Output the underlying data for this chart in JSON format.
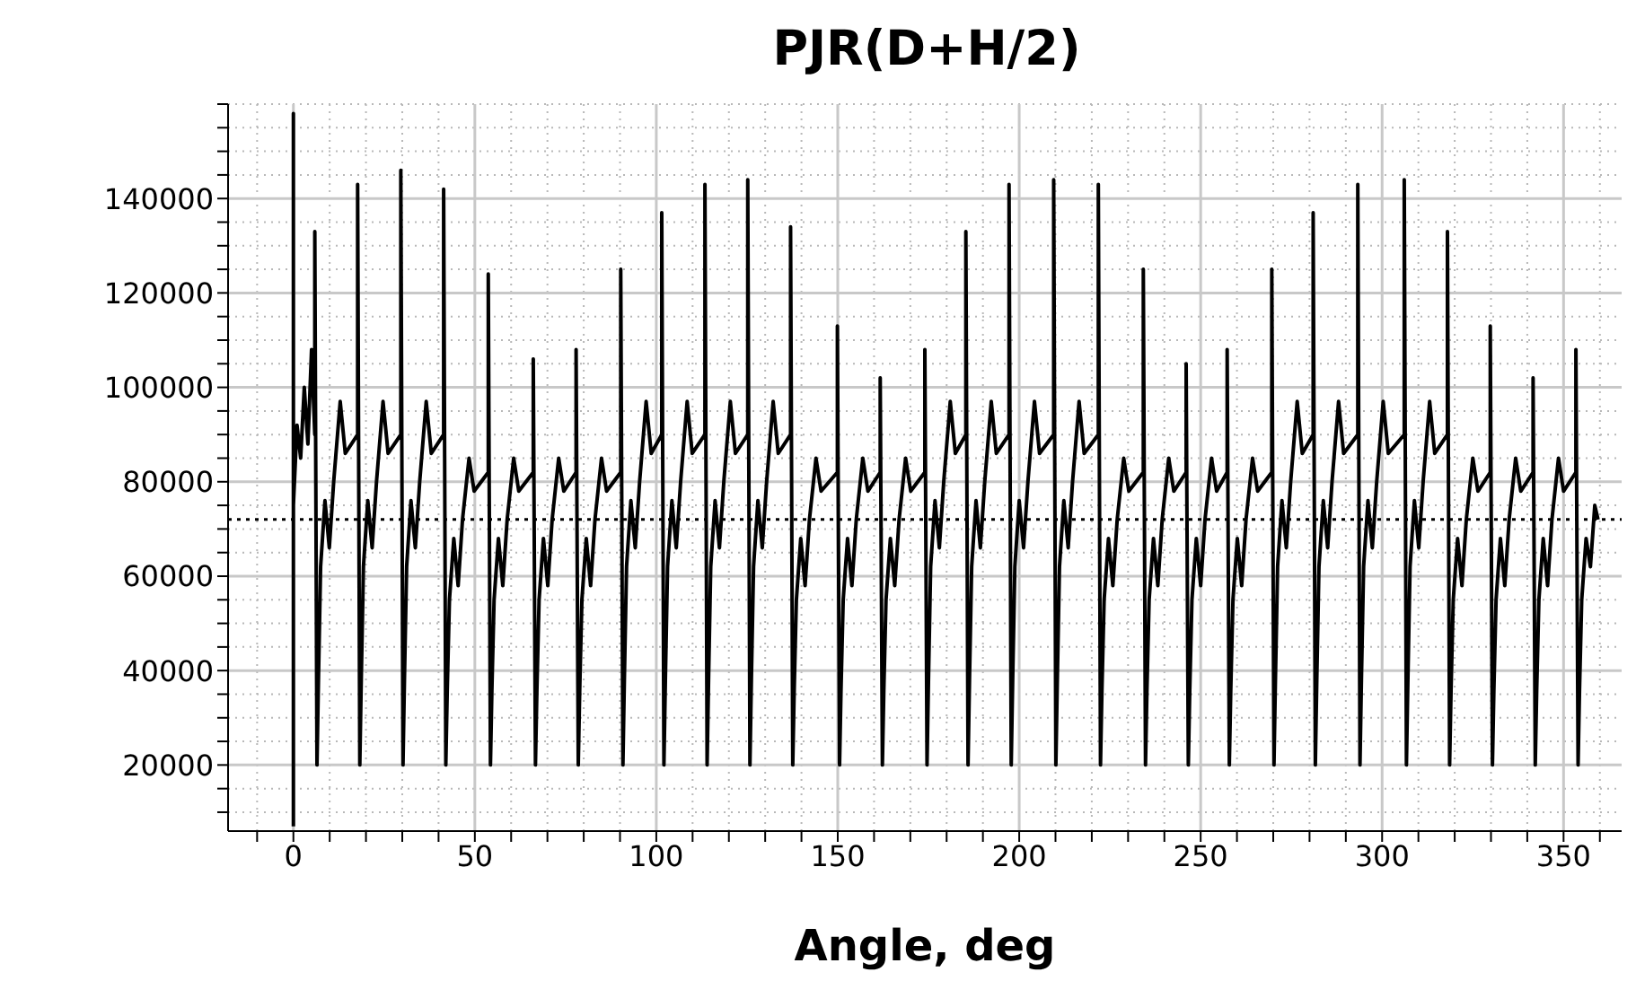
{
  "chart_data": {
    "type": "line",
    "title": "PJR(D+H/2)",
    "xlabel": "Angle, deg",
    "xlim": [
      -18,
      366
    ],
    "xticks": [
      {
        "value": -10,
        "label": null
      },
      0,
      {
        "value": 10,
        "label": null
      },
      {
        "value": 20,
        "label": null
      },
      {
        "value": 30,
        "label": null
      },
      {
        "value": 40,
        "label": null
      },
      50,
      {
        "value": 60,
        "label": null
      },
      {
        "value": 70,
        "label": null
      },
      {
        "value": 80,
        "label": null
      },
      {
        "value": 90,
        "label": null
      },
      100,
      {
        "value": 110,
        "label": null
      },
      {
        "value": 120,
        "label": null
      },
      {
        "value": 130,
        "label": null
      },
      {
        "value": 140,
        "label": null
      },
      150,
      {
        "value": 160,
        "label": null
      },
      {
        "value": 170,
        "label": null
      },
      {
        "value": 180,
        "label": null
      },
      {
        "value": 190,
        "label": null
      },
      200,
      {
        "value": 210,
        "label": null
      },
      {
        "value": 220,
        "label": null
      },
      {
        "value": 230,
        "label": null
      },
      {
        "value": 240,
        "label": null
      },
      250,
      {
        "value": 260,
        "label": null
      },
      {
        "value": 270,
        "label": null
      },
      {
        "value": 280,
        "label": null
      },
      {
        "value": 290,
        "label": null
      },
      300,
      {
        "value": 310,
        "label": null
      },
      {
        "value": 320,
        "label": null
      },
      {
        "value": 330,
        "label": null
      },
      {
        "value": 340,
        "label": null
      },
      350,
      {
        "value": 360,
        "label": null
      }
    ],
    "ylim": [
      6000,
      160000
    ],
    "yticks": [
      {
        "value": 10000,
        "label": null
      },
      {
        "value": 15000,
        "label": null
      },
      20000,
      {
        "value": 25000,
        "label": null
      },
      {
        "value": 30000,
        "label": null
      },
      {
        "value": 35000,
        "label": null
      },
      40000,
      {
        "value": 45000,
        "label": null
      },
      {
        "value": 50000,
        "label": null
      },
      {
        "value": 55000,
        "label": null
      },
      60000,
      {
        "value": 65000,
        "label": null
      },
      {
        "value": 70000,
        "label": null
      },
      {
        "value": 75000,
        "label": null
      },
      80000,
      {
        "value": 85000,
        "label": null
      },
      {
        "value": 90000,
        "label": null
      },
      {
        "value": 95000,
        "label": null
      },
      100000,
      {
        "value": 105000,
        "label": null
      },
      {
        "value": 110000,
        "label": null
      },
      {
        "value": 115000,
        "label": null
      },
      120000,
      {
        "value": 125000,
        "label": null
      },
      {
        "value": 130000,
        "label": null
      },
      {
        "value": 135000,
        "label": null
      },
      140000,
      {
        "value": 145000,
        "label": null
      },
      {
        "value": 150000,
        "label": null
      },
      {
        "value": 155000,
        "label": null
      },
      {
        "value": 160000,
        "label": null
      }
    ],
    "grid": true,
    "ref_lines": [
      {
        "axis": "y",
        "value": 72000,
        "color": "#000000",
        "line_style": "dotted"
      }
    ],
    "series": [
      {
        "color": "#000000",
        "x": [
          0,
          0,
          0,
          1,
          2,
          3,
          4,
          5,
          5.9,
          5.9,
          6.5,
          6.9,
          7.5,
          8.7,
          9.9,
          11.1,
          12.9,
          14.3,
          17.7,
          17.7,
          18.3,
          18.7,
          19.3,
          20.5,
          21.7,
          22.9,
          24.7,
          26.1,
          29.6,
          29.6,
          30.2,
          30.6,
          31.2,
          32.4,
          33.6,
          34.8,
          36.6,
          38,
          41.4,
          41.4,
          42,
          42.4,
          43,
          44.2,
          45.4,
          46.6,
          48.4,
          49.8,
          53.7,
          53.7,
          54.3,
          54.7,
          55.3,
          56.5,
          57.7,
          58.9,
          60.7,
          62.1,
          66.1,
          66.1,
          66.7,
          67.1,
          67.7,
          68.9,
          70.1,
          71.3,
          73.1,
          74.5,
          77.9,
          77.9,
          78.5,
          78.9,
          79.5,
          80.7,
          81.9,
          83.1,
          84.9,
          86.3,
          90.2,
          90.2,
          90.8,
          91.2,
          91.8,
          93,
          94.2,
          95.4,
          97.2,
          98.6,
          101.5,
          101.5,
          102.1,
          102.5,
          103.1,
          104.3,
          105.5,
          106.7,
          108.5,
          109.9,
          113.4,
          113.4,
          114,
          114.4,
          115,
          116.2,
          117.4,
          118.6,
          120.4,
          121.8,
          125.2,
          125.2,
          125.8,
          126.2,
          126.8,
          128,
          129.2,
          130.4,
          132.2,
          133.6,
          137,
          137,
          137.6,
          138,
          138.6,
          139.8,
          141,
          142.2,
          144,
          145.4,
          149.9,
          149.9,
          150.5,
          150.9,
          151.5,
          152.7,
          153.9,
          155.1,
          156.9,
          158.3,
          161.7,
          161.7,
          162.3,
          162.7,
          163.3,
          164.5,
          165.7,
          166.9,
          168.7,
          170.1,
          174,
          174,
          174.6,
          175,
          175.6,
          176.8,
          178,
          179.2,
          181,
          182.4,
          185.3,
          185.3,
          185.9,
          186.3,
          186.9,
          188.1,
          189.3,
          190.5,
          192.3,
          193.7,
          197.2,
          197.2,
          197.8,
          198.2,
          198.8,
          200,
          201.2,
          202.4,
          204.2,
          205.6,
          209.5,
          209.5,
          210.1,
          210.5,
          211.1,
          212.3,
          213.5,
          214.7,
          216.5,
          217.9,
          221.8,
          221.8,
          222.4,
          222.8,
          223.4,
          224.6,
          225.8,
          227,
          228.8,
          230.2,
          234.2,
          234.2,
          234.8,
          235.2,
          235.8,
          237,
          238.2,
          239.4,
          241.2,
          242.6,
          246,
          246,
          246.6,
          247,
          247.6,
          248.8,
          250,
          251.2,
          253,
          254.4,
          257.3,
          257.3,
          257.9,
          258.3,
          258.9,
          260.1,
          261.3,
          262.5,
          264.3,
          265.7,
          269.6,
          269.6,
          270.2,
          270.6,
          271.2,
          272.4,
          273.6,
          274.8,
          276.6,
          278,
          281,
          281,
          281.6,
          282,
          282.6,
          283.8,
          285,
          286.2,
          288,
          289.4,
          293.3,
          293.3,
          293.9,
          294.3,
          294.9,
          296.1,
          297.3,
          298.5,
          300.3,
          301.7,
          306.1,
          306.1,
          306.7,
          307.1,
          307.7,
          308.9,
          310.1,
          311.3,
          313.1,
          314.5,
          318,
          318,
          318.6,
          319,
          319.6,
          320.8,
          322,
          323.2,
          325,
          326.4,
          329.8,
          329.8,
          330.4,
          330.8,
          331.4,
          332.6,
          333.8,
          335,
          336.8,
          338.2,
          341.6,
          341.6,
          342.2,
          342.6,
          343.2,
          344.4,
          345.6,
          346.8,
          348.6,
          350,
          353.4,
          353.4,
          354,
          354.4,
          355,
          356.2,
          357.4,
          358.6,
          359.5
        ],
        "values": [
          7000,
          158000,
          75000,
          92000,
          85000,
          100000,
          88000,
          108000,
          90000,
          133000,
          20000,
          38000,
          62000,
          76000,
          66000,
          80000,
          97000,
          86000,
          90000,
          143000,
          20000,
          38000,
          62000,
          76000,
          66000,
          80000,
          97000,
          86000,
          90000,
          146000,
          20000,
          38000,
          62000,
          76000,
          66000,
          80000,
          97000,
          86000,
          90000,
          142000,
          20000,
          36000,
          55000,
          68000,
          58000,
          72000,
          85000,
          78000,
          82000,
          124000,
          20000,
          36000,
          55000,
          68000,
          58000,
          72000,
          85000,
          78000,
          82000,
          106000,
          20000,
          36000,
          55000,
          68000,
          58000,
          72000,
          85000,
          78000,
          82000,
          108000,
          20000,
          36000,
          55000,
          68000,
          58000,
          72000,
          85000,
          78000,
          82000,
          125000,
          20000,
          38000,
          62000,
          76000,
          66000,
          80000,
          97000,
          86000,
          90000,
          137000,
          20000,
          38000,
          62000,
          76000,
          66000,
          80000,
          97000,
          86000,
          90000,
          143000,
          20000,
          38000,
          62000,
          76000,
          66000,
          80000,
          97000,
          86000,
          90000,
          144000,
          20000,
          38000,
          62000,
          76000,
          66000,
          80000,
          97000,
          86000,
          90000,
          134000,
          20000,
          36000,
          55000,
          68000,
          58000,
          72000,
          85000,
          78000,
          82000,
          113000,
          20000,
          36000,
          55000,
          68000,
          58000,
          72000,
          85000,
          78000,
          82000,
          102000,
          20000,
          36000,
          55000,
          68000,
          58000,
          72000,
          85000,
          78000,
          82000,
          108000,
          20000,
          38000,
          62000,
          76000,
          66000,
          80000,
          97000,
          86000,
          90000,
          133000,
          20000,
          38000,
          62000,
          76000,
          66000,
          80000,
          97000,
          86000,
          90000,
          143000,
          20000,
          38000,
          62000,
          76000,
          66000,
          80000,
          97000,
          86000,
          90000,
          144000,
          20000,
          38000,
          62000,
          76000,
          66000,
          80000,
          97000,
          86000,
          90000,
          143000,
          20000,
          36000,
          55000,
          68000,
          58000,
          72000,
          85000,
          78000,
          82000,
          125000,
          20000,
          36000,
          55000,
          68000,
          58000,
          72000,
          85000,
          78000,
          82000,
          105000,
          20000,
          36000,
          55000,
          68000,
          58000,
          72000,
          85000,
          78000,
          82000,
          108000,
          20000,
          36000,
          55000,
          68000,
          58000,
          72000,
          85000,
          78000,
          82000,
          125000,
          20000,
          38000,
          62000,
          76000,
          66000,
          80000,
          97000,
          86000,
          90000,
          137000,
          20000,
          38000,
          62000,
          76000,
          66000,
          80000,
          97000,
          86000,
          90000,
          143000,
          20000,
          38000,
          62000,
          76000,
          66000,
          80000,
          97000,
          86000,
          90000,
          144000,
          20000,
          38000,
          62000,
          76000,
          66000,
          80000,
          97000,
          86000,
          90000,
          133000,
          20000,
          36000,
          55000,
          68000,
          58000,
          72000,
          85000,
          78000,
          82000,
          113000,
          20000,
          36000,
          55000,
          68000,
          58000,
          72000,
          85000,
          78000,
          82000,
          102000,
          20000,
          36000,
          55000,
          68000,
          58000,
          72000,
          85000,
          78000,
          82000,
          108000,
          20000,
          36000,
          55000,
          68000,
          62000,
          75000,
          72000
        ]
      }
    ]
  }
}
